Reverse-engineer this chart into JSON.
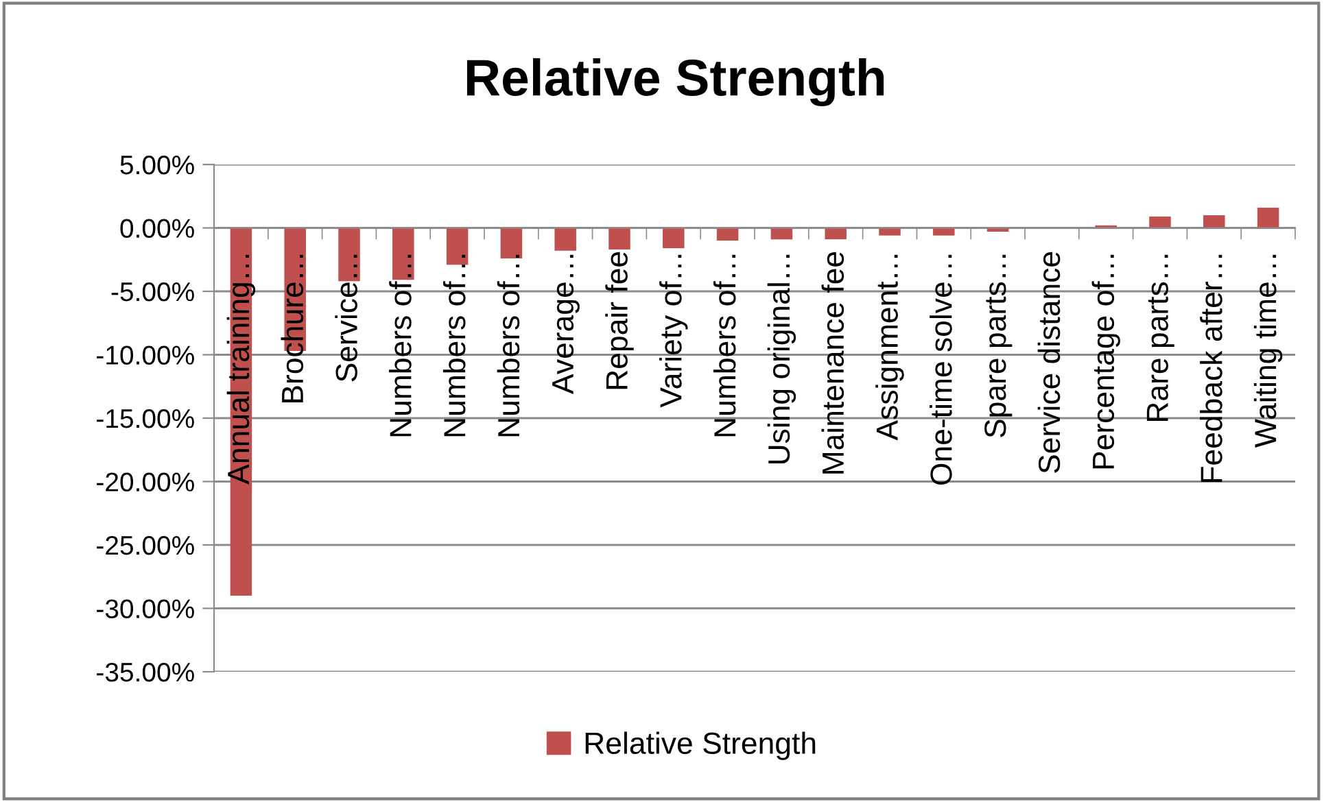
{
  "chart_data": {
    "type": "bar",
    "title": "Relative Strength",
    "categories": [
      "Annual training…",
      "Brochure…",
      "Service…",
      "Numbers of…",
      "Numbers of…",
      "Numbers of…",
      "Average…",
      "Repair fee",
      "Variety of…",
      "Numbers of…",
      "Using original…",
      "Maintenance fee",
      "Assignment…",
      "One-time solve…",
      "Spare parts…",
      "Service distance",
      "Percentage of…",
      "Rare parts…",
      "Feedback after…",
      "Waiting time…"
    ],
    "series": [
      {
        "name": "Relative Strength",
        "color": "#c0504d",
        "values": [
          -29.0,
          -9.7,
          -4.2,
          -4.1,
          -2.9,
          -2.4,
          -1.8,
          -1.7,
          -1.6,
          -1.0,
          -0.9,
          -0.9,
          -0.6,
          -0.6,
          -0.3,
          0,
          0.2,
          0.9,
          1.0,
          1.6
        ]
      }
    ],
    "ylim": [
      -35,
      5
    ],
    "yticks": [
      {
        "value": 5,
        "label": "5.00%"
      },
      {
        "value": 0,
        "label": "0.00%"
      },
      {
        "value": -5,
        "label": "-5.00%"
      },
      {
        "value": -10,
        "label": "-10.00%"
      },
      {
        "value": -15,
        "label": "-15.00%"
      },
      {
        "value": -20,
        "label": "-20.00%"
      },
      {
        "value": -25,
        "label": "-25.00%"
      },
      {
        "value": -30,
        "label": "-30.00%"
      },
      {
        "value": -35,
        "label": "-35.00%"
      }
    ],
    "grid": "y",
    "legend": "bottom"
  }
}
